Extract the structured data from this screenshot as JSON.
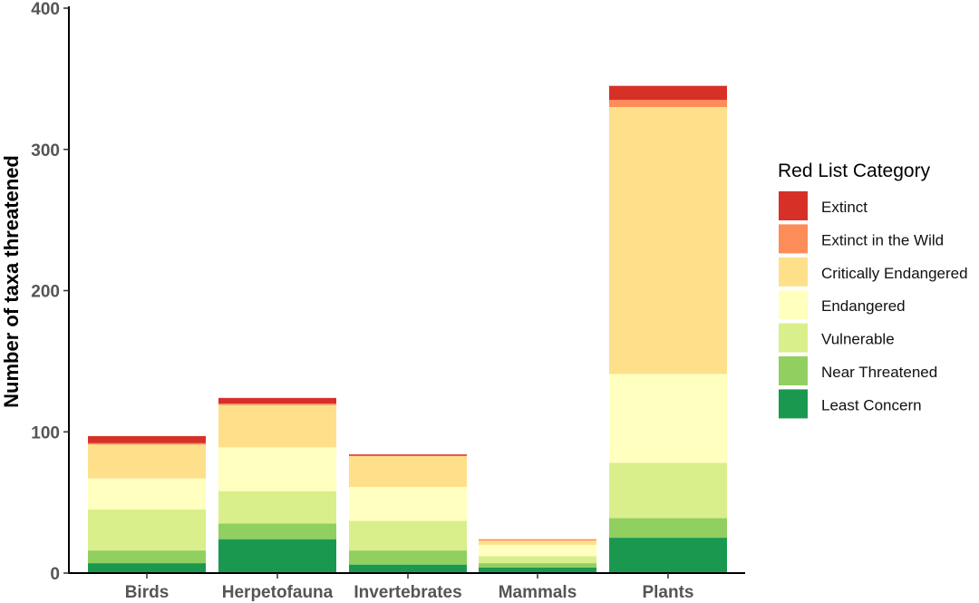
{
  "chart_data": {
    "type": "bar",
    "stacked": true,
    "title": "",
    "xlabel": "",
    "ylabel": "Number of taxa threatened",
    "ylim": [
      0,
      400
    ],
    "yticks": [
      0,
      100,
      200,
      300,
      400
    ],
    "grid": false,
    "categories": [
      "Birds",
      "Herpetofauna",
      "Invertebrates",
      "Mammals",
      "Plants"
    ],
    "legend": {
      "title": "Red List Category",
      "placement": "right"
    },
    "series": [
      {
        "name": "Least Concern",
        "color": "#1a9850",
        "values": [
          7,
          24,
          6,
          4,
          25
        ]
      },
      {
        "name": "Near Threatened",
        "color": "#91cf60",
        "values": [
          9,
          11,
          10,
          3,
          14
        ]
      },
      {
        "name": "Vulnerable",
        "color": "#d9ef8b",
        "values": [
          29,
          23,
          21,
          5,
          39
        ]
      },
      {
        "name": "Endangered",
        "color": "#ffffbf",
        "values": [
          22,
          31,
          24,
          8,
          63
        ]
      },
      {
        "name": "Critically Endangered",
        "color": "#fee08b",
        "values": [
          24,
          30,
          22,
          3,
          189
        ]
      },
      {
        "name": "Extinct in the Wild",
        "color": "#fc8d59",
        "values": [
          1,
          1,
          0,
          1,
          5
        ]
      },
      {
        "name": "Extinct",
        "color": "#d73027",
        "values": [
          5,
          4,
          1,
          0,
          10
        ]
      }
    ],
    "legend_order": [
      "Extinct",
      "Extinct in the Wild",
      "Critically Endangered",
      "Endangered",
      "Vulnerable",
      "Near Threatened",
      "Least Concern"
    ]
  }
}
